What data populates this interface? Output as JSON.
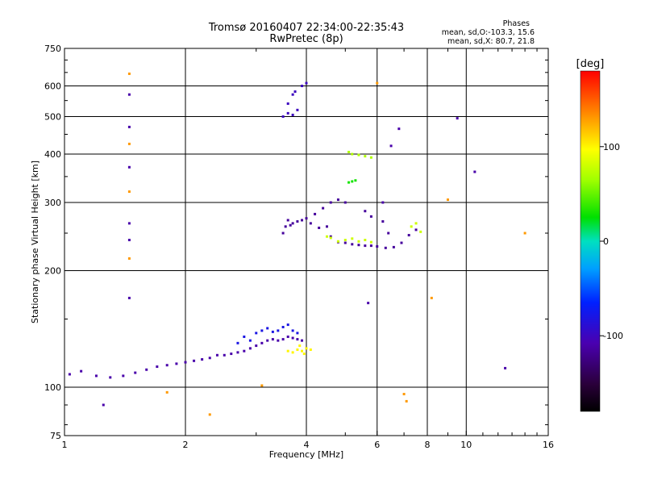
{
  "header": {
    "title_line1": "Tromsø 20160407 22:34:00-22:35:43",
    "title_line2": "RwPretec (8p)",
    "stats_heading": "Phases",
    "stats_line_o": "mean, sd,O:-103.3, 15.6",
    "stats_line_x": "mean, sd,X:  80.7, 21.8"
  },
  "colorbar": {
    "label": "[deg]",
    "range": [
      -180,
      180
    ],
    "ticks": [
      {
        "value": 100,
        "label": "100"
      },
      {
        "value": 0,
        "label": "0"
      },
      {
        "value": -100,
        "label": "-100"
      }
    ],
    "colormap": "rainbow (black-purple-blue-cyan-green-yellow-orange-red)"
  },
  "chart_data": {
    "type": "scatter",
    "title": "Tromsø 20160407 22:34:00-22:35:43",
    "subtitle": "RwPretec (8p)",
    "xlabel": "Frequency [MHz]",
    "ylabel": "Stationary phase Virtual Height [km]",
    "xscale": "log2",
    "yscale": "log",
    "xlim": [
      1,
      16
    ],
    "ylim": [
      75,
      750
    ],
    "grid": true,
    "x_ticks": [
      {
        "value": 1,
        "label": "1",
        "grid": true
      },
      {
        "value": 2,
        "label": "2",
        "grid": true
      },
      {
        "value": 4,
        "label": "4",
        "grid": true
      },
      {
        "value": 6,
        "label": "6",
        "grid": true
      },
      {
        "value": 8,
        "label": "8",
        "grid": true
      },
      {
        "value": 10,
        "label": "10",
        "grid": true
      },
      {
        "value": 16,
        "label": "16",
        "grid": false
      }
    ],
    "y_ticks": [
      {
        "value": 75,
        "label": "75",
        "grid": false
      },
      {
        "value": 100,
        "label": "100",
        "grid": true
      },
      {
        "value": 200,
        "label": "200",
        "grid": true
      },
      {
        "value": 300,
        "label": "300",
        "grid": true
      },
      {
        "value": 400,
        "label": "400",
        "grid": true
      },
      {
        "value": 500,
        "label": "500",
        "grid": true
      },
      {
        "value": 600,
        "label": "600",
        "grid": true
      },
      {
        "value": 750,
        "label": "750",
        "grid": false
      }
    ],
    "color_by": "phase_deg",
    "series": [
      {
        "trace": "E/F1 low trace",
        "color_phase_deg": -110,
        "points": [
          [
            1.03,
            108
          ],
          [
            1.1,
            110
          ],
          [
            1.2,
            107
          ],
          [
            1.3,
            106
          ],
          [
            1.4,
            107
          ],
          [
            1.5,
            109
          ],
          [
            1.6,
            111
          ],
          [
            1.7,
            113
          ],
          [
            1.8,
            114
          ],
          [
            1.9,
            115
          ],
          [
            2.0,
            116
          ],
          [
            2.1,
            117
          ],
          [
            2.2,
            118
          ],
          [
            2.3,
            119
          ],
          [
            2.4,
            121
          ],
          [
            2.5,
            121
          ],
          [
            2.6,
            122
          ],
          [
            2.7,
            123
          ],
          [
            2.8,
            124
          ],
          [
            2.9,
            126
          ],
          [
            3.0,
            128
          ],
          [
            3.1,
            130
          ],
          [
            3.2,
            132
          ],
          [
            3.3,
            133
          ],
          [
            3.4,
            132
          ],
          [
            3.5,
            133
          ],
          [
            3.6,
            135
          ],
          [
            3.7,
            134
          ],
          [
            3.8,
            133
          ],
          [
            3.9,
            132
          ]
        ]
      },
      {
        "trace": "lower band scatter",
        "color_phase_deg": -80,
        "points": [
          [
            2.7,
            130
          ],
          [
            2.8,
            135
          ],
          [
            2.9,
            132
          ],
          [
            3.0,
            138
          ],
          [
            3.1,
            140
          ],
          [
            3.2,
            142
          ],
          [
            3.3,
            139
          ],
          [
            3.4,
            140
          ],
          [
            3.5,
            143
          ],
          [
            3.6,
            145
          ],
          [
            3.7,
            140
          ],
          [
            3.8,
            138
          ]
        ]
      },
      {
        "trace": "X-mode low",
        "color_phase_deg": 100,
        "points": [
          [
            3.6,
            124
          ],
          [
            3.7,
            123
          ],
          [
            3.8,
            125
          ],
          [
            3.9,
            124
          ],
          [
            4.0,
            126
          ],
          [
            4.1,
            125
          ],
          [
            3.85,
            128
          ],
          [
            3.95,
            122
          ]
        ]
      },
      {
        "trace": "F region O-mode",
        "color_phase_deg": -115,
        "points": [
          [
            3.5,
            250
          ],
          [
            3.55,
            260
          ],
          [
            3.6,
            270
          ],
          [
            3.65,
            262
          ],
          [
            3.7,
            265
          ],
          [
            3.8,
            268
          ],
          [
            3.9,
            270
          ],
          [
            4.0,
            273
          ],
          [
            4.1,
            265
          ],
          [
            4.3,
            258
          ],
          [
            4.5,
            260
          ],
          [
            4.6,
            245
          ],
          [
            4.8,
            237
          ],
          [
            5.0,
            236
          ],
          [
            5.2,
            234
          ],
          [
            5.4,
            233
          ],
          [
            5.6,
            232
          ],
          [
            5.8,
            232
          ],
          [
            6.0,
            231
          ],
          [
            6.3,
            229
          ],
          [
            6.6,
            230
          ],
          [
            6.9,
            236
          ],
          [
            7.2,
            247
          ],
          [
            7.5,
            255
          ],
          [
            4.2,
            280
          ],
          [
            4.4,
            290
          ],
          [
            4.6,
            300
          ],
          [
            4.8,
            305
          ],
          [
            5.0,
            300
          ],
          [
            5.6,
            285
          ],
          [
            5.8,
            276
          ],
          [
            6.2,
            268
          ],
          [
            6.4,
            250
          ]
        ]
      },
      {
        "trace": "F region X-mode",
        "color_phase_deg": 80,
        "points": [
          [
            4.5,
            245
          ],
          [
            4.6,
            243
          ],
          [
            4.8,
            238
          ],
          [
            5.0,
            240
          ],
          [
            5.2,
            242
          ],
          [
            5.4,
            238
          ],
          [
            5.6,
            240
          ],
          [
            5.8,
            237
          ],
          [
            7.3,
            260
          ],
          [
            7.5,
            265
          ],
          [
            7.7,
            252
          ]
        ]
      },
      {
        "trace": "F region X upper",
        "color_phase_deg": 70,
        "points": [
          [
            5.1,
            405
          ],
          [
            5.2,
            400
          ],
          [
            5.4,
            398
          ],
          [
            5.6,
            395
          ],
          [
            5.8,
            392
          ]
        ]
      },
      {
        "trace": "green cluster",
        "color_phase_deg": 30,
        "points": [
          [
            5.2,
            340
          ],
          [
            5.3,
            342
          ],
          [
            5.1,
            338
          ]
        ]
      },
      {
        "trace": "multihop cluster",
        "color_phase_deg": -100,
        "points": [
          [
            3.5,
            500
          ],
          [
            3.6,
            510
          ],
          [
            3.7,
            505
          ],
          [
            3.8,
            520
          ],
          [
            3.6,
            540
          ],
          [
            3.7,
            570
          ],
          [
            3.75,
            580
          ],
          [
            3.9,
            600
          ],
          [
            4.0,
            610
          ]
        ]
      },
      {
        "trace": "isolated echoes",
        "color_phase_deg": -110,
        "points": [
          [
            1.45,
            570
          ],
          [
            1.45,
            470
          ],
          [
            1.45,
            370
          ],
          [
            1.45,
            265
          ],
          [
            1.45,
            240
          ],
          [
            1.45,
            170
          ],
          [
            9.5,
            495
          ],
          [
            10.5,
            360
          ],
          [
            12.5,
            112
          ],
          [
            6.8,
            465
          ],
          [
            6.5,
            420
          ],
          [
            6.2,
            300
          ],
          [
            5.7,
            165
          ],
          [
            1.25,
            90
          ]
        ]
      },
      {
        "trace": "isolated warm echoes",
        "color_phase_deg": 130,
        "points": [
          [
            1.45,
            645
          ],
          [
            1.45,
            425
          ],
          [
            1.45,
            320
          ],
          [
            1.45,
            215
          ],
          [
            2.3,
            85
          ],
          [
            3.1,
            101
          ],
          [
            1.8,
            97
          ],
          [
            6.0,
            610
          ],
          [
            7.0,
            96
          ],
          [
            7.1,
            92
          ],
          [
            8.2,
            170
          ],
          [
            9.0,
            305
          ],
          [
            14.0,
            250
          ]
        ]
      }
    ]
  }
}
